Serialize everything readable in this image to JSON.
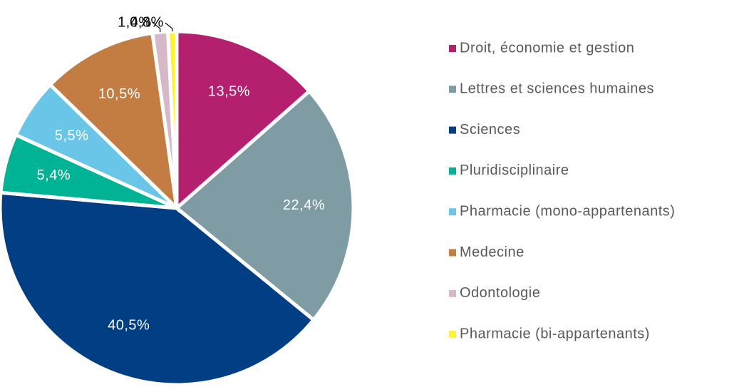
{
  "chart_data": {
    "type": "pie",
    "categories": [
      "Droit, économie et gestion",
      "Lettres et sciences humaines",
      "Sciences",
      "Pluridisciplinaire",
      "Pharmacie  (mono-appartenants)",
      "Medecine",
      "Odontologie",
      "Pharmacie (bi-appartenants)"
    ],
    "values": [
      13.5,
      22.4,
      40.5,
      5.4,
      5.5,
      10.5,
      1.4,
      0.8
    ],
    "value_labels": [
      "13,5%",
      "22,4%",
      "40,5%",
      "5,4%",
      "5,5%",
      "10,5%",
      "1,4%",
      "0,8%"
    ],
    "colors": [
      "#b5206e",
      "#7f9ca5",
      "#023e84",
      "#00b394",
      "#6ac6e8",
      "#c37d43",
      "#d6b9c8",
      "#fff133"
    ],
    "legend": "right"
  }
}
